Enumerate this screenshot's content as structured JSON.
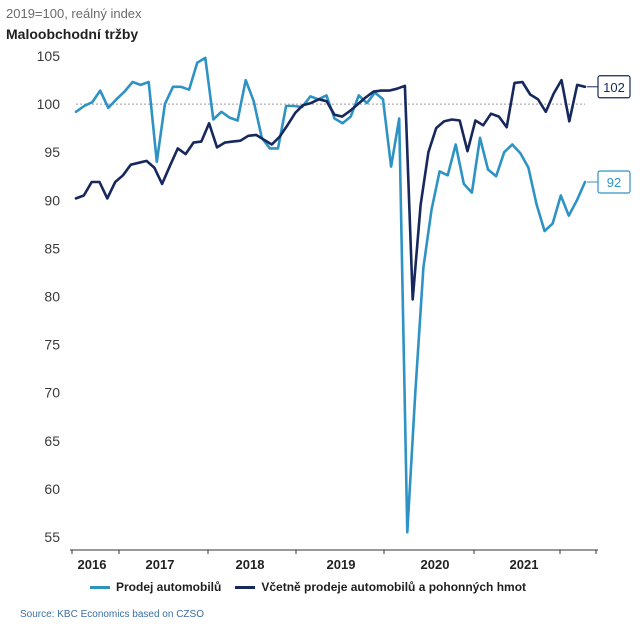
{
  "header": {
    "subtitle": "2019=100, reálný index",
    "title": "Maloobchodní tržby"
  },
  "source": "Source: KBC Economics based on CZSO",
  "colors": {
    "series1": "#2e93c4",
    "series2": "#16285c",
    "gridline": "#9a9a9a",
    "axis": "#333333",
    "tick_text": "#3a3a3a"
  },
  "chart_data": {
    "type": "line",
    "title": "Maloobchodní tržby",
    "subtitle": "2019=100, reálný index",
    "xlabel": "",
    "ylabel": "",
    "ylim": [
      54,
      107
    ],
    "yticks": [
      55,
      60,
      65,
      70,
      75,
      80,
      85,
      90,
      95,
      100,
      105
    ],
    "x_tick_labels": [
      "2016",
      "2017",
      "2018",
      "2019",
      "2020",
      "2021"
    ],
    "reference_line": 100,
    "series": [
      {
        "name": "Prodej automobilů",
        "end_label": "92",
        "values": [
          99.2,
          99.8,
          100.2,
          101.4,
          99.6,
          100.5,
          101.3,
          102.3,
          102.0,
          102.3,
          94.0,
          100.0,
          101.8,
          101.8,
          101.5,
          104.3,
          104.8,
          98.4,
          99.2,
          98.6,
          98.3,
          102.5,
          100.3,
          96.5,
          95.4,
          95.4,
          99.8,
          99.8,
          99.7,
          100.8,
          100.5,
          100.9,
          98.5,
          98.0,
          98.7,
          100.9,
          100.1,
          101.2,
          100.5,
          93.5,
          98.5,
          55.5,
          70.0,
          83.0,
          89.0,
          93.0,
          92.6,
          95.8,
          91.7,
          90.8,
          96.5,
          93.2,
          92.5,
          95.0,
          95.8,
          94.9,
          93.4,
          89.6,
          86.8,
          87.6,
          90.5,
          88.4,
          90.0,
          91.9
        ]
      },
      {
        "name": "Včetně prodeje automobilů a pohonných hmot",
        "end_label": "102",
        "values": [
          90.2,
          90.5,
          91.9,
          91.9,
          90.2,
          91.9,
          92.6,
          93.7,
          93.9,
          94.1,
          93.4,
          91.7,
          93.6,
          95.4,
          94.8,
          96.0,
          96.1,
          98.0,
          95.5,
          96.0,
          96.1,
          96.2,
          96.7,
          96.8,
          96.3,
          95.8,
          96.6,
          97.8,
          99.1,
          99.9,
          100.1,
          100.5,
          100.3,
          98.9,
          98.7,
          99.3,
          100.0,
          100.7,
          101.3,
          101.4,
          101.4,
          101.6,
          101.9,
          79.7,
          89.5,
          95.0,
          97.5,
          98.2,
          98.4,
          98.3,
          95.1,
          98.3,
          97.8,
          99.0,
          98.7,
          97.6,
          102.2,
          102.3,
          101.0,
          100.5,
          99.2,
          101.1,
          102.5,
          98.2,
          102.0,
          101.8
        ]
      }
    ]
  }
}
